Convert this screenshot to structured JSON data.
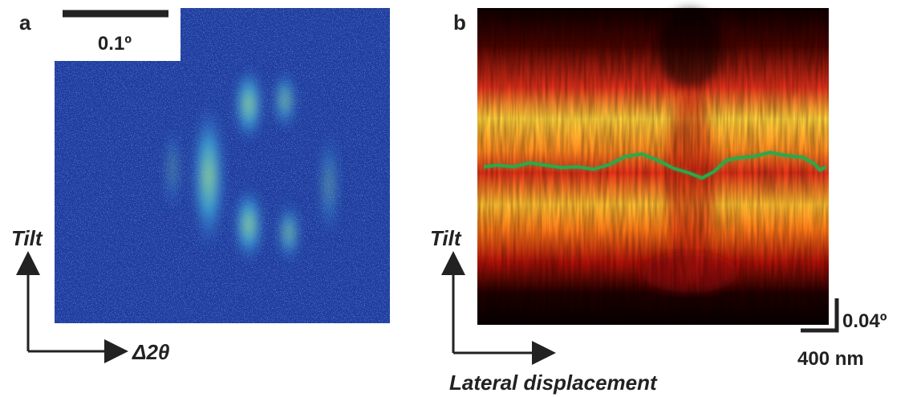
{
  "panel_a": {
    "label": "a",
    "scale_label": "0.1º",
    "y_axis_label": "Tilt",
    "x_axis_label": "Δ2θ"
  },
  "panel_b": {
    "label": "b",
    "y_axis_label": "Tilt",
    "x_axis_label": "Lateral displacement",
    "vertical_scale_label": "0.04º",
    "horizontal_scale_label": "400 nm"
  }
}
